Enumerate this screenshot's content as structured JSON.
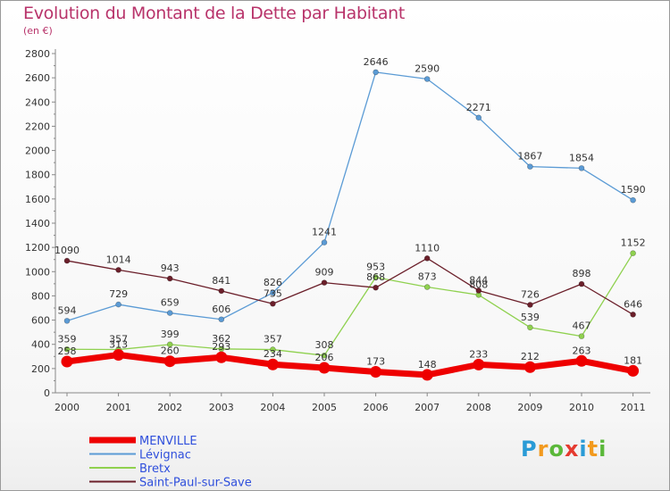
{
  "chart_data": {
    "type": "line",
    "title": "Evolution du Montant de la Dette par Habitant",
    "unit_label": "(en €)",
    "x": [
      "2000",
      "2001",
      "2002",
      "2003",
      "2004",
      "2005",
      "2006",
      "2007",
      "2008",
      "2009",
      "2010",
      "2011"
    ],
    "ylim": [
      0,
      2800
    ],
    "yticks": [
      "0",
      "200",
      "400",
      "600",
      "800",
      "1000",
      "1200",
      "1400",
      "1600",
      "1800",
      "2000",
      "2200",
      "2400",
      "2600",
      "2800"
    ],
    "grid": false,
    "legend_position": "bottom-left",
    "series": [
      {
        "name": "Lévignac",
        "color": "#5b9bd5",
        "values": [
          594,
          729,
          659,
          606,
          826,
          1241,
          2646,
          2590,
          2271,
          1867,
          1854,
          1590
        ],
        "labels": [
          "594",
          "729",
          "659",
          "606",
          "826",
          "1241",
          "2646",
          "2590",
          "2271",
          "1867",
          "1854",
          "1590"
        ]
      },
      {
        "name": "Bretx",
        "color": "#8fd14f",
        "values": [
          359,
          357,
          399,
          362,
          357,
          308,
          953,
          873,
          808,
          539,
          467,
          1152
        ],
        "labels": [
          "359",
          "357",
          "399",
          "362",
          "357",
          "308",
          "953",
          "873",
          "808",
          "539",
          "467",
          "1152"
        ]
      },
      {
        "name": "Saint-Paul-sur-Save",
        "color": "#6b1f2a",
        "values": [
          1090,
          1014,
          943,
          841,
          735,
          909,
          868,
          1110,
          844,
          726,
          898,
          646
        ],
        "labels": [
          "1090",
          "1014",
          "943",
          "841",
          "735",
          "909",
          "868",
          "1110",
          "844",
          "726",
          "898",
          "646"
        ]
      },
      {
        "name": "MENVILLE",
        "color": "#ee0000",
        "values": [
          258,
          313,
          260,
          293,
          234,
          206,
          173,
          148,
          233,
          212,
          263,
          181
        ],
        "labels": [
          "258",
          "313",
          "260",
          "293",
          "234",
          "206",
          "173",
          "148",
          "233",
          "212",
          "263",
          "181"
        ]
      }
    ]
  },
  "logo_letters": [
    "P",
    "r",
    "o",
    "x",
    "i",
    "t",
    "i"
  ],
  "logo_colors": [
    "#2a9bd6",
    "#f29a1f",
    "#5bb83a",
    "#e53a2f",
    "#2a9bd6",
    "#f29a1f",
    "#5bb83a"
  ]
}
